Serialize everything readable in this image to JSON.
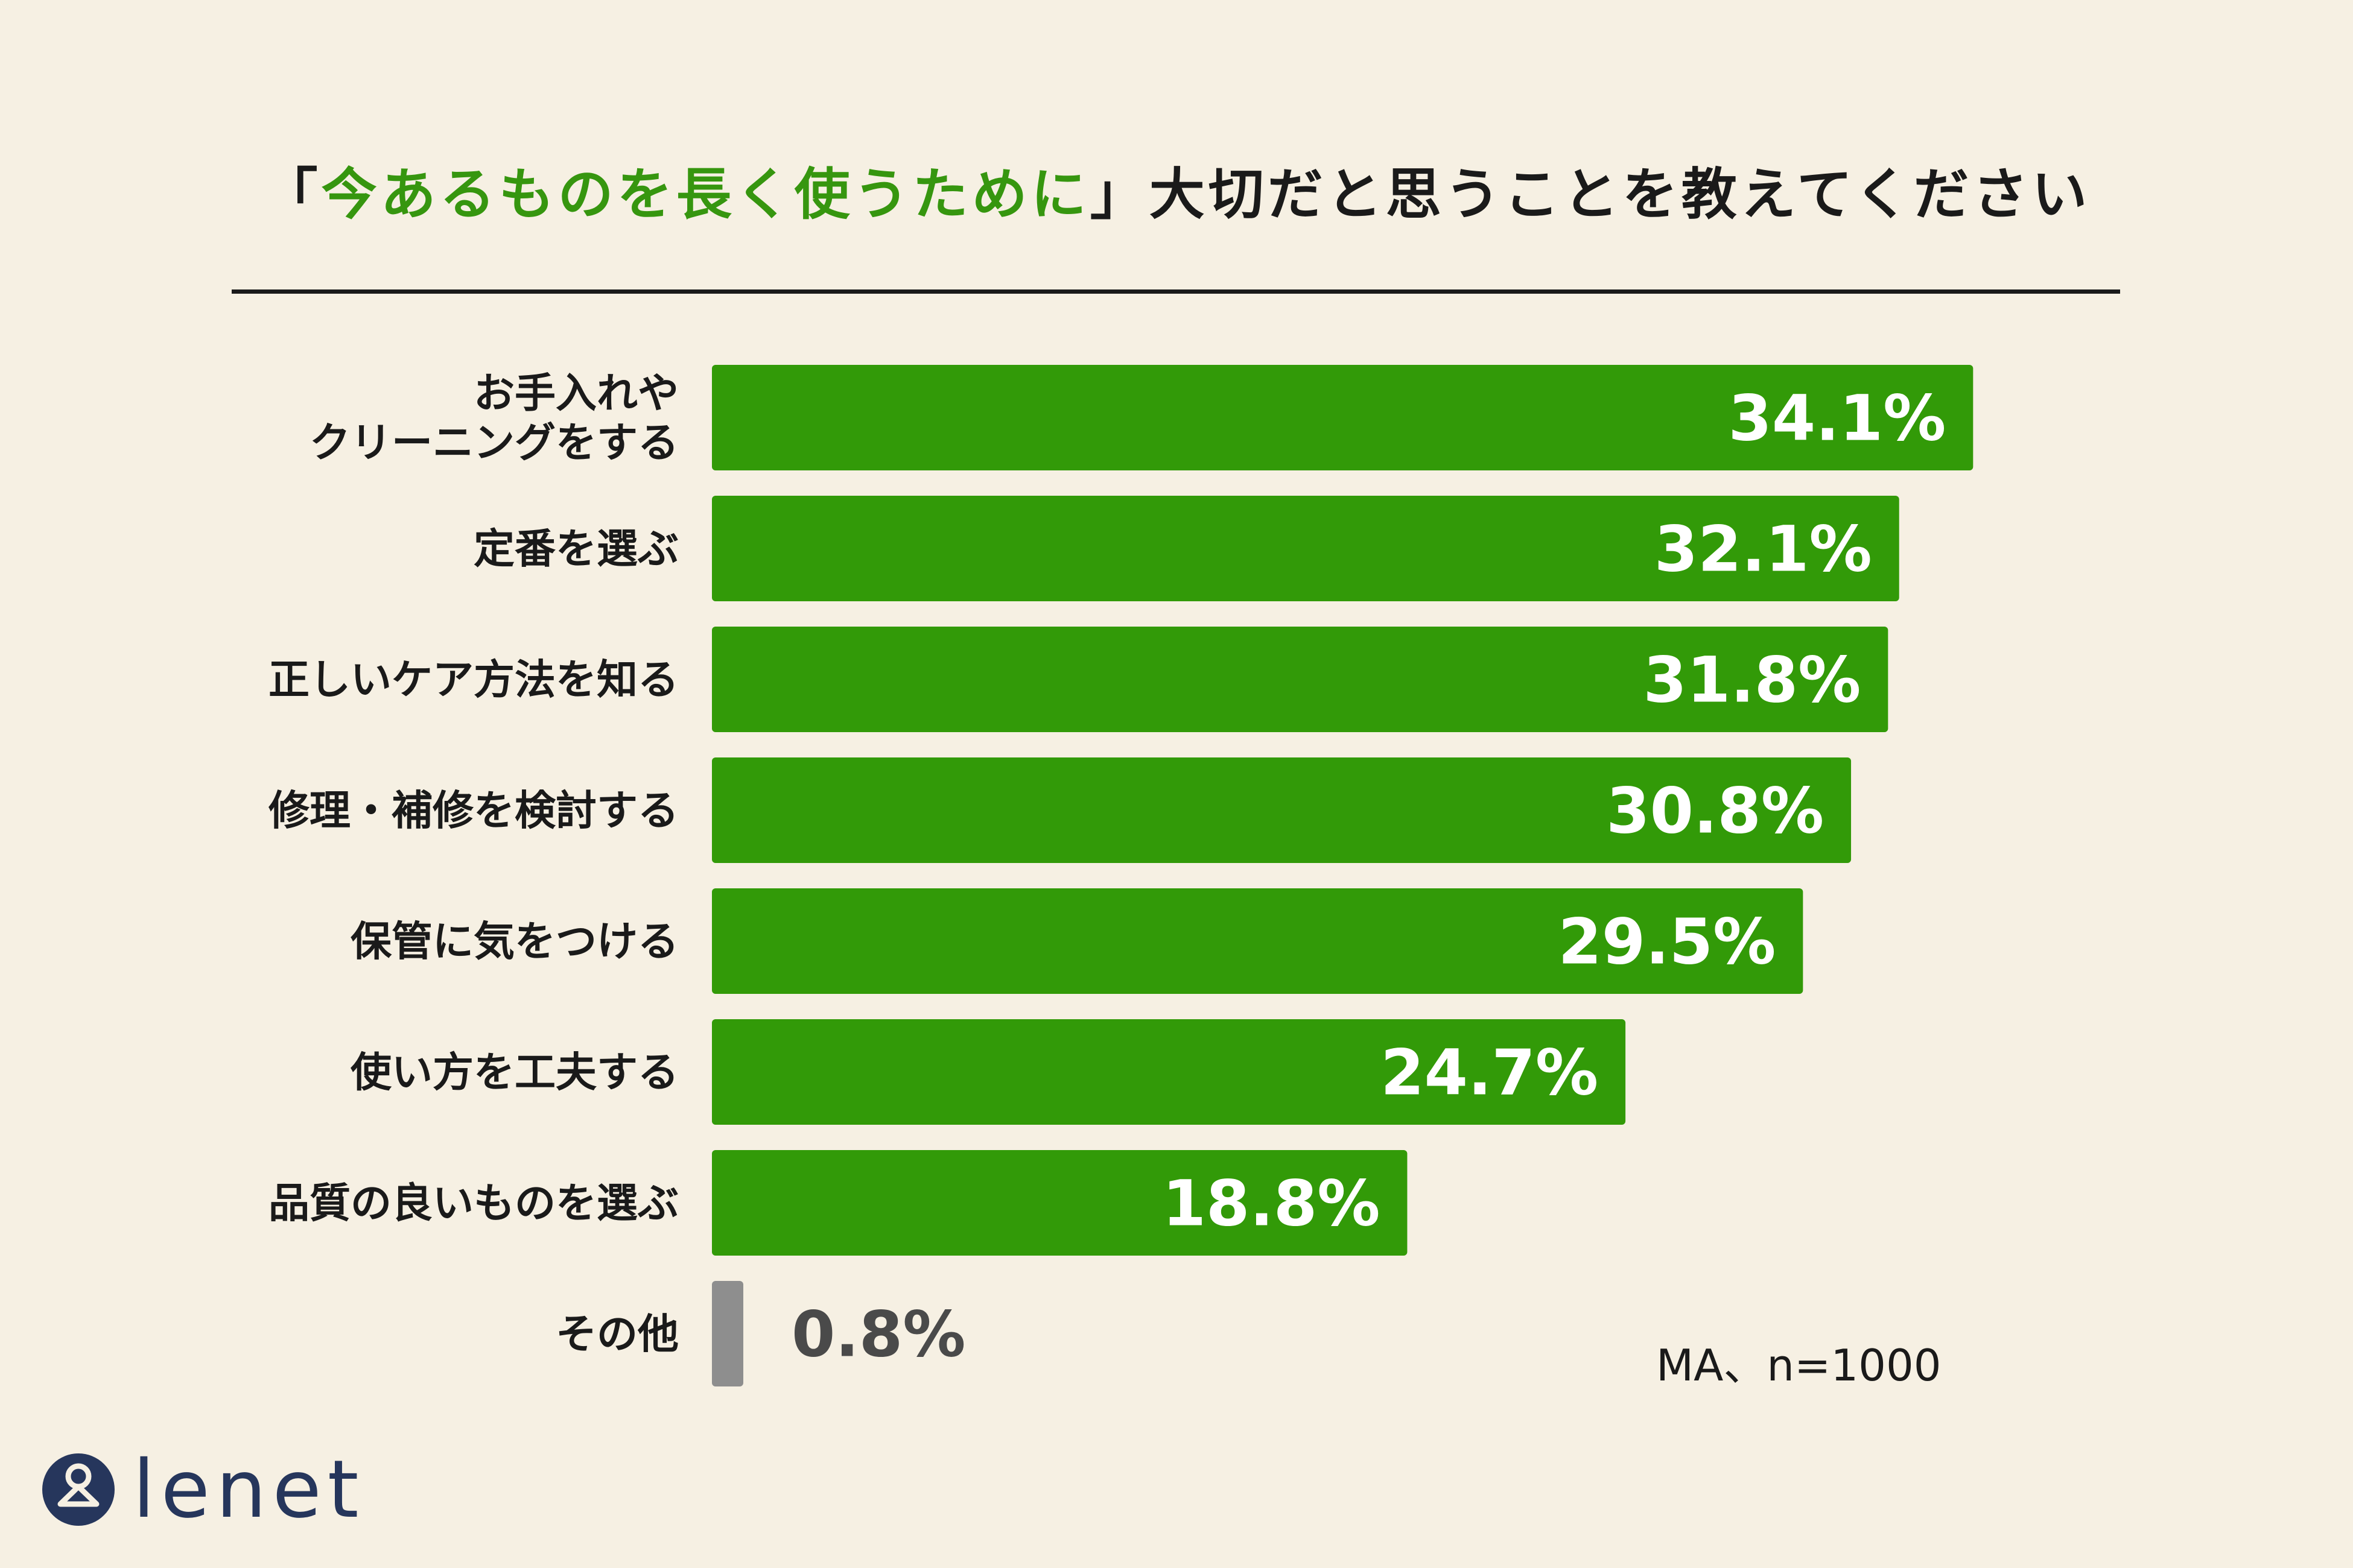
{
  "title": {
    "open_bracket": "「",
    "highlight": "今あるものを長く使うために",
    "rest": "」大切だと思うことを教えてください"
  },
  "chart_data": {
    "type": "bar",
    "orientation": "horizontal",
    "categories": [
      [
        "お手入れや",
        "クリーニングをする"
      ],
      [
        "定番を選ぶ"
      ],
      [
        "正しいケア方法を知る"
      ],
      [
        "修理・補修を検討する"
      ],
      [
        "保管に気をつける"
      ],
      [
        "使い方を工夫する"
      ],
      [
        "品質の良いものを選ぶ"
      ],
      [
        "その他"
      ]
    ],
    "values": [
      34.1,
      32.1,
      31.8,
      30.8,
      29.5,
      24.7,
      18.8,
      0.8
    ],
    "value_labels": [
      "34.1%",
      "32.1%",
      "31.8%",
      "30.8%",
      "29.5%",
      "24.7%",
      "18.8%",
      "0.8%"
    ],
    "colors": [
      "#329a08",
      "#329a08",
      "#329a08",
      "#329a08",
      "#329a08",
      "#329a08",
      "#329a08",
      "#8e8e8e"
    ],
    "value_label_position": [
      "inside",
      "inside",
      "inside",
      "inside",
      "inside",
      "inside",
      "inside",
      "outside"
    ]
  },
  "note": "MA、n=1000",
  "logo": {
    "text": "lenet",
    "icon": "hanger-person-icon",
    "color": "#26365c"
  },
  "colors": {
    "background": "#f6f0e3",
    "accent": "#36960f",
    "bar": "#329a08",
    "other_bar": "#8e8e8e",
    "text": "#1a1a1a"
  }
}
